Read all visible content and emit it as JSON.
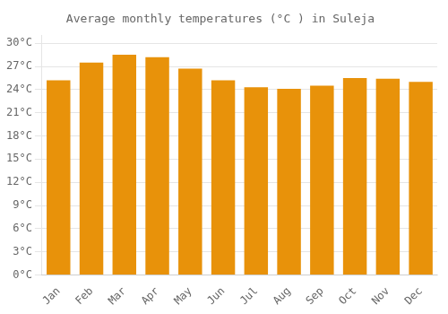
{
  "chart_data": {
    "type": "bar",
    "title": "Average monthly temperatures (°C ) in Suleja",
    "categories": [
      "Jan",
      "Feb",
      "Mar",
      "Apr",
      "May",
      "Jun",
      "Jul",
      "Aug",
      "Sep",
      "Oct",
      "Nov",
      "Dec"
    ],
    "values": [
      25.2,
      27.5,
      28.5,
      28.2,
      26.7,
      25.2,
      24.3,
      24.1,
      24.5,
      25.5,
      25.4,
      25.0
    ],
    "color": "#E8920A",
    "ylim": [
      0,
      31
    ],
    "yticks": [
      {
        "value": 0,
        "label": "0°C"
      },
      {
        "value": 3,
        "label": "3°C"
      },
      {
        "value": 6,
        "label": "6°C"
      },
      {
        "value": 9,
        "label": "9°C"
      },
      {
        "value": 12,
        "label": "12°C"
      },
      {
        "value": 15,
        "label": "15°C"
      },
      {
        "value": 18,
        "label": "18°C"
      },
      {
        "value": 21,
        "label": "21°C"
      },
      {
        "value": 24,
        "label": "24°C"
      },
      {
        "value": 27,
        "label": "27°C"
      },
      {
        "value": 30,
        "label": "30°C"
      }
    ],
    "grid": true
  }
}
